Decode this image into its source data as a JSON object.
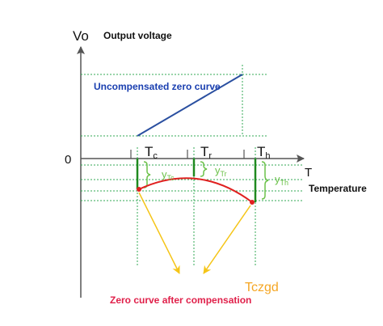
{
  "axes": {
    "y_label": "Vo",
    "y_caption": "Output voltage",
    "origin_label": "0",
    "x_label": "T",
    "x_caption": "Temperature"
  },
  "curves": {
    "uncompensated_label": "Uncompensated zero curve",
    "compensated_label": "Zero curve after compensation",
    "tczgd_label": "Tczgd"
  },
  "temperatures": {
    "tc": {
      "main": "T",
      "sub": "c"
    },
    "tr": {
      "main": "T",
      "sub": "r"
    },
    "th": {
      "main": "T",
      "sub": "h"
    }
  },
  "offsets": {
    "ytc": {
      "main": "y",
      "sub": "Tc"
    },
    "ytr": {
      "main": "y",
      "sub": "Tr"
    },
    "yth": {
      "main": "y",
      "sub": "Th"
    }
  },
  "colors": {
    "axis": "#555555",
    "grid": "#33aa55",
    "uncompensated_line": "#2a4fa0",
    "compensated_curve": "#e02020",
    "green_segment": "#1f8a1f",
    "arrow": "#f5c518",
    "blue_text": "#1a3fb0",
    "red_text": "#e0204a",
    "orange_text": "#f5a623",
    "brace": "#6cc24a"
  }
}
